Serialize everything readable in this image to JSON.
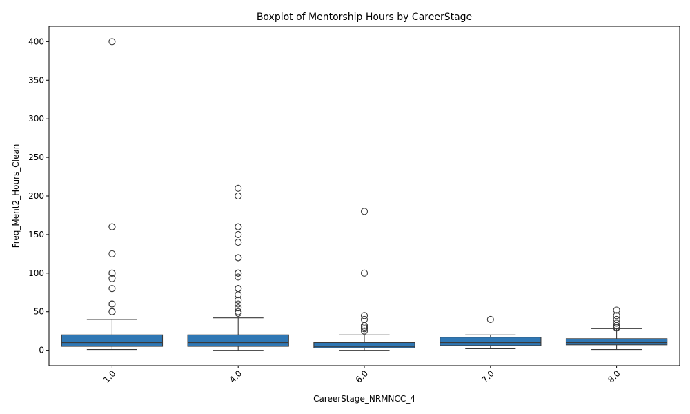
{
  "chart_data": {
    "type": "box",
    "title": "Boxplot of Mentorship Hours by CareerStage",
    "xlabel": "CareerStage_NRMNCC_4",
    "ylabel": "Freq_Ment2_Hours_Clean",
    "ylim": [
      -20,
      420
    ],
    "yticks": [
      0,
      50,
      100,
      150,
      200,
      250,
      300,
      350,
      400
    ],
    "grid": false,
    "colors": {
      "box_fill": "#2f77b4",
      "line": "#3a3a3a",
      "outlier_edge": "#3a3a3a"
    },
    "categories": [
      "1.0",
      "4.0",
      "6.0",
      "7.0",
      "8.0"
    ],
    "boxes": [
      {
        "category": "1.0",
        "whisker_low": 1,
        "q1": 5,
        "median": 10,
        "q3": 20,
        "whisker_high": 40,
        "outliers": [
          50,
          50,
          60,
          60,
          80,
          93,
          100,
          100,
          125,
          160,
          160,
          400
        ]
      },
      {
        "category": "4.0",
        "whisker_low": 0,
        "q1": 5,
        "median": 10,
        "q3": 20,
        "whisker_high": 42,
        "outliers": [
          48,
          50,
          55,
          60,
          65,
          72,
          80,
          80,
          95,
          100,
          100,
          120,
          120,
          140,
          150,
          160,
          160,
          200,
          210
        ]
      },
      {
        "category": "6.0",
        "whisker_low": 0,
        "q1": 3,
        "median": 5,
        "q3": 10,
        "whisker_high": 20,
        "outliers": [
          25,
          28,
          30,
          32,
          40,
          45,
          100,
          180
        ]
      },
      {
        "category": "7.0",
        "whisker_low": 2,
        "q1": 6,
        "median": 10,
        "q3": 17,
        "whisker_high": 20,
        "outliers": [
          40
        ]
      },
      {
        "category": "8.0",
        "whisker_low": 1,
        "q1": 7,
        "median": 10,
        "q3": 15,
        "whisker_high": 28,
        "outliers": [
          29,
          30,
          32,
          35,
          40,
          45,
          52
        ]
      }
    ]
  }
}
